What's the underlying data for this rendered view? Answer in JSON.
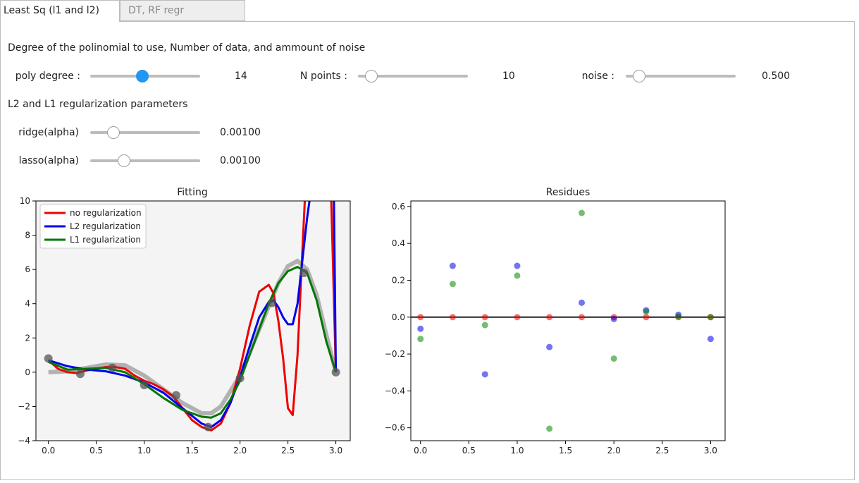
{
  "tabs": [
    {
      "label": "Least Sq (l1 and l2)",
      "active": true
    },
    {
      "label": "DT, RF regr",
      "active": false
    }
  ],
  "section1_title": "Degree of the polinomial to use, Number of data, and ammount of noise",
  "sliders_row1": [
    {
      "label": "poly degree :",
      "value": "14",
      "level": 0.48
    },
    {
      "label": "N points :",
      "value": "10",
      "level": 0.12
    },
    {
      "label": "noise :",
      "value": "0.500",
      "level": 0.12
    }
  ],
  "section2_title": "L2 and L1 regularization parameters",
  "sliders_row2": [
    {
      "label": "ridge(alpha)",
      "value": "0.00100",
      "level": 0.2
    },
    {
      "label": "lasso(alpha)",
      "value": "0.00100",
      "level": 0.3
    }
  ],
  "colors": {
    "accent": "#2196f3",
    "no_reg": "#ee0000",
    "l2": "#0000ee",
    "l1": "#007700",
    "truth": "#aaaaaa"
  },
  "chart_data": [
    {
      "type": "line",
      "title": "Fitting",
      "xlim": [
        -0.13,
        3.15
      ],
      "ylim": [
        -4,
        10
      ],
      "xticks": [
        "0.0",
        "0.5",
        "1.0",
        "1.5",
        "2.0",
        "2.5",
        "3.0"
      ],
      "yticks": [
        "−4",
        "−2",
        "0",
        "2",
        "4",
        "6",
        "8",
        "10"
      ],
      "legend_position": "top-left",
      "legend": [
        "no regularization",
        "L2 regularization",
        "L1 regularization"
      ],
      "truth": {
        "x": [
          0,
          0.2,
          0.4,
          0.6,
          0.8,
          1.0,
          1.2,
          1.4,
          1.6,
          1.7,
          1.8,
          2.0,
          2.2,
          2.4,
          2.5,
          2.6,
          2.7,
          2.8,
          2.9,
          3.0
        ],
        "y": [
          0,
          0.05,
          0.25,
          0.45,
          0.4,
          -0.2,
          -1.0,
          -1.8,
          -2.4,
          -2.4,
          -2.0,
          -0.2,
          2.5,
          5.2,
          6.2,
          6.5,
          6.0,
          4.5,
          2.2,
          0
        ]
      },
      "points": {
        "x": [
          0,
          0.333,
          0.667,
          1.0,
          1.333,
          1.667,
          2.0,
          2.333,
          2.667,
          3.0
        ],
        "y": [
          0.8,
          -0.1,
          0.25,
          -0.75,
          -1.35,
          -3.2,
          -0.35,
          4.05,
          5.8,
          0.0
        ]
      },
      "series": [
        {
          "name": "no regularization",
          "x": [
            0,
            0.1,
            0.2,
            0.3,
            0.4,
            0.5,
            0.6,
            0.7,
            0.8,
            0.9,
            1.0,
            1.1,
            1.2,
            1.3,
            1.4,
            1.5,
            1.6,
            1.7,
            1.8,
            1.9,
            2.0,
            2.1,
            2.2,
            2.3,
            2.35,
            2.4,
            2.45,
            2.5,
            2.55,
            2.6,
            2.65,
            2.68,
            2.72,
            2.75,
            2.8,
            2.85,
            2.9,
            2.95,
            3.0
          ],
          "y": [
            0.7,
            0.2,
            0.0,
            -0.05,
            0.1,
            0.2,
            0.3,
            0.3,
            0.2,
            -0.2,
            -0.5,
            -0.7,
            -1.0,
            -1.4,
            -2.1,
            -2.8,
            -3.2,
            -3.4,
            -3.0,
            -1.8,
            0.2,
            2.7,
            4.7,
            5.1,
            4.6,
            3.0,
            0.8,
            -2.1,
            -2.5,
            1.0,
            7.0,
            10.5,
            11,
            11,
            11,
            11,
            11,
            10.5,
            0
          ]
        },
        {
          "name": "L2 regularization",
          "x": [
            0,
            0.2,
            0.4,
            0.6,
            0.8,
            1.0,
            1.2,
            1.4,
            1.6,
            1.7,
            1.8,
            1.9,
            2.0,
            2.1,
            2.2,
            2.3,
            2.35,
            2.4,
            2.45,
            2.5,
            2.55,
            2.6,
            2.65,
            2.7,
            2.75,
            2.8,
            2.85,
            2.9,
            2.95,
            2.98,
            3.0
          ],
          "y": [
            0.7,
            0.35,
            0.15,
            0.05,
            -0.2,
            -0.6,
            -1.2,
            -2.1,
            -3.0,
            -3.2,
            -2.8,
            -1.8,
            -0.3,
            1.5,
            3.2,
            4.1,
            4.2,
            3.8,
            3.2,
            2.8,
            2.8,
            4.0,
            6.5,
            9.0,
            11,
            11,
            11,
            11,
            11,
            10,
            0.1
          ]
        },
        {
          "name": "L1 regularization",
          "x": [
            0,
            0.2,
            0.4,
            0.6,
            0.8,
            1.0,
            1.2,
            1.4,
            1.6,
            1.7,
            1.8,
            1.9,
            2.0,
            2.1,
            2.2,
            2.3,
            2.4,
            2.5,
            2.6,
            2.7,
            2.8,
            2.9,
            3.0
          ],
          "y": [
            0.6,
            0.15,
            0.2,
            0.25,
            0.0,
            -0.7,
            -1.5,
            -2.2,
            -2.6,
            -2.65,
            -2.4,
            -1.6,
            -0.5,
            1.0,
            2.5,
            4.0,
            5.2,
            5.9,
            6.15,
            5.8,
            4.2,
            1.8,
            0.0
          ]
        }
      ]
    },
    {
      "type": "scatter",
      "title": "Residues",
      "xlim": [
        -0.1,
        3.15
      ],
      "ylim": [
        -0.67,
        0.63
      ],
      "xticks": [
        "0.0",
        "0.5",
        "1.0",
        "1.5",
        "2.0",
        "2.5",
        "3.0"
      ],
      "yticks": [
        "0.6",
        "0.4",
        "0.2",
        "0.0",
        "−0.2",
        "−0.4",
        "−0.6"
      ],
      "zero_line": true,
      "series": [
        {
          "x": [
            0,
            0.333,
            0.667,
            1.0,
            1.333,
            1.667,
            2.0,
            2.333,
            2.667,
            3.0
          ],
          "y": [
            0,
            0,
            0,
            0,
            0,
            0,
            0,
            0,
            0,
            0
          ],
          "color": "#ee0000"
        },
        {
          "x": [
            0,
            0.333,
            0.667,
            1.0,
            1.333,
            1.667,
            2.0,
            2.333,
            2.667,
            3.0
          ],
          "y": [
            -0.063,
            0.278,
            -0.31,
            0.278,
            -0.162,
            0.078,
            -0.01,
            0.037,
            0.013,
            -0.118
          ],
          "color": "#0000ee"
        },
        {
          "x": [
            0,
            0.333,
            0.667,
            1.0,
            1.333,
            1.667,
            2.0,
            2.333,
            2.667,
            3.0
          ],
          "y": [
            -0.118,
            0.18,
            -0.043,
            0.225,
            -0.605,
            0.565,
            -0.225,
            0.03,
            0.003,
            0.0
          ],
          "color": "#008800"
        }
      ]
    }
  ]
}
